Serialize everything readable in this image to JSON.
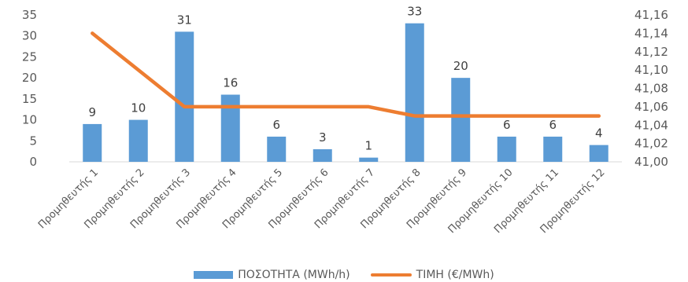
{
  "colors": {
    "bar": "#5B9BD5",
    "line": "#ED7D31",
    "text": "#595959"
  },
  "chart_data": {
    "type": "bar",
    "title": "",
    "xlabel": "",
    "categories": [
      "Προμηθευτής 1",
      "Προμηθευτής 2",
      "Προμηθευτής 3",
      "Προμηθευτής 4",
      "Προμηθευτής 5",
      "Προμηθευτής 6",
      "Προμηθευτής 7",
      "Προμηθευτής 8",
      "Προμηθευτής 9",
      "Προμηθευτής 10",
      "Προμηθευτής 11",
      "Προμηθευτής 12"
    ],
    "series": [
      {
        "name": "ΠΟΣΟΤΗΤΑ (MWh/h)",
        "type": "bar",
        "axis": "left",
        "values": [
          9,
          10,
          31,
          16,
          6,
          3,
          1,
          33,
          20,
          6,
          6,
          4
        ],
        "data_labels": [
          "9",
          "10",
          "31",
          "16",
          "6",
          "3",
          "1",
          "33",
          "20",
          "6",
          "6",
          "4"
        ]
      },
      {
        "name": "ΤΙΜΗ (€/MWh)",
        "type": "line",
        "axis": "right",
        "values": [
          41.14,
          41.1,
          41.06,
          41.06,
          41.06,
          41.06,
          41.06,
          41.05,
          41.05,
          41.05,
          41.05,
          41.05
        ]
      }
    ],
    "y_left": {
      "range": [
        0,
        35
      ],
      "ticks": [
        0,
        5,
        10,
        15,
        20,
        25,
        30,
        35
      ],
      "tick_labels": [
        "0",
        "5",
        "10",
        "15",
        "20",
        "25",
        "30",
        "35"
      ]
    },
    "y_right": {
      "range": [
        41.0,
        41.16
      ],
      "ticks": [
        41.0,
        41.02,
        41.04,
        41.06,
        41.08,
        41.1,
        41.12,
        41.14,
        41.16
      ],
      "tick_labels": [
        "41,00",
        "41,02",
        "41,04",
        "41,06",
        "41,08",
        "41,10",
        "41,12",
        "41,14",
        "41,16"
      ]
    },
    "grid": false,
    "legend_position": "bottom"
  }
}
